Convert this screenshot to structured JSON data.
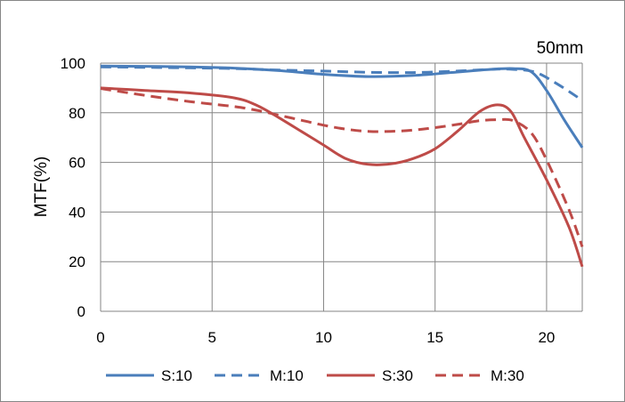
{
  "chart_data": {
    "type": "line",
    "title": "50mm",
    "xlabel": "",
    "ylabel": "MTF(%)",
    "xlim": [
      0,
      21.6
    ],
    "ylim": [
      0,
      100
    ],
    "xticks": [
      0,
      5,
      10,
      15,
      20
    ],
    "yticks": [
      0,
      20,
      40,
      60,
      80,
      100
    ],
    "grid": true,
    "legend_position": "bottom",
    "series": [
      {
        "name": "S:10",
        "color": "#4a7ebb",
        "dash": "solid",
        "x": [
          0,
          2,
          4,
          6,
          8,
          10,
          12,
          14,
          16,
          17.5,
          18.5,
          19.3,
          20,
          20.8,
          21.6
        ],
        "y": [
          98.8,
          98.7,
          98.5,
          98,
          97,
          95.5,
          94.6,
          95,
          96.4,
          97.5,
          97.8,
          96.6,
          89,
          77,
          66
        ]
      },
      {
        "name": "M:10",
        "color": "#4a7ebb",
        "dash": "dashed",
        "x": [
          0,
          2,
          4,
          6,
          8,
          10,
          12,
          14,
          16,
          17.5,
          18.5,
          19.5,
          20.5,
          21.6
        ],
        "y": [
          98.5,
          98.3,
          98.1,
          97.8,
          97.2,
          96.8,
          96.3,
          96.2,
          96.8,
          97.5,
          97.5,
          96.3,
          91.5,
          85
        ]
      },
      {
        "name": "S:30",
        "color": "#be4b48",
        "dash": "solid",
        "x": [
          0,
          2,
          4,
          6,
          7,
          8,
          9,
          10,
          11,
          12,
          13,
          14,
          15,
          16,
          17,
          17.8,
          18.4,
          19,
          20,
          21,
          21.6
        ],
        "y": [
          90,
          89,
          88,
          86,
          83,
          78,
          72.5,
          67,
          61.5,
          59.2,
          59.4,
          61.5,
          65.5,
          72.5,
          80.5,
          83.2,
          80.5,
          70,
          53,
          34,
          18
        ]
      },
      {
        "name": "M:30",
        "color": "#be4b48",
        "dash": "dashed",
        "x": [
          0,
          2,
          4,
          6,
          7,
          8,
          9,
          10,
          11,
          12,
          13,
          14,
          15,
          16,
          17,
          17.8,
          18.5,
          19.3,
          20,
          21,
          21.6
        ],
        "y": [
          89.8,
          87,
          84.5,
          82.5,
          81,
          79,
          77,
          75,
          73.4,
          72.5,
          72.5,
          73,
          74,
          75.3,
          76.8,
          77.2,
          76.8,
          72,
          61,
          41,
          26
        ]
      }
    ]
  }
}
